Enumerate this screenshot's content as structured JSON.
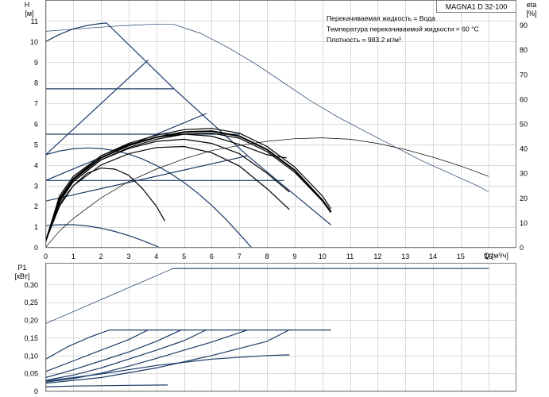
{
  "model_label": "MAGNA1 D 32-100",
  "info_lines": [
    "Перекачиваемая жидкость = Вода",
    "Температура перекачиваемой жидкости = 60 °C",
    "Плотность = 983.2 кг/м³"
  ],
  "chart_data": [
    {
      "type": "line",
      "name": "head-curves",
      "ylabel_lines": [
        "H",
        "[м]"
      ],
      "y2label_lines": [
        "eta",
        "[%]"
      ],
      "xlabel": "Q [м³/ч]",
      "xlim": [
        0,
        17
      ],
      "ylim": [
        0,
        12
      ],
      "y2lim": [
        0,
        100
      ],
      "x_ticks": [
        0,
        1,
        2,
        3,
        4,
        5,
        6,
        7,
        8,
        9,
        10,
        11,
        12,
        13,
        14,
        15,
        16
      ],
      "y_ticks": [
        0,
        1,
        2,
        3,
        4,
        5,
        6,
        7,
        8,
        9,
        10,
        11
      ],
      "y2_ticks": [
        0,
        10,
        20,
        30,
        40,
        50,
        60,
        70,
        80,
        90
      ],
      "grid": true,
      "series": [
        {
          "role": "max-curve",
          "color": "#1a3a66",
          "width": 1.2,
          "x": [
            0,
            0.5,
            1,
            1.5,
            2,
            2.2,
            4.6,
            7.3,
            10.3
          ],
          "y": [
            10.0,
            10.35,
            10.62,
            10.78,
            10.88,
            10.9,
            7.75,
            4.45,
            1.1
          ]
        },
        {
          "role": "constant-pressure",
          "color": "#1a3a66",
          "width": 1.2,
          "x": [
            0,
            4.6
          ],
          "y": [
            7.7,
            7.7
          ]
        },
        {
          "role": "constant-pressure",
          "color": "#1a3a66",
          "width": 1.2,
          "x": [
            0,
            7.0
          ],
          "y": [
            5.5,
            5.5
          ]
        },
        {
          "role": "constant-pressure",
          "color": "#1a3a66",
          "width": 1.2,
          "x": [
            0,
            8.6
          ],
          "y": [
            3.25,
            3.25
          ]
        },
        {
          "role": "proportional-pressure",
          "color": "#1a3a66",
          "width": 1.2,
          "x": [
            0,
            3.7
          ],
          "y": [
            4.5,
            9.1
          ]
        },
        {
          "role": "proportional-pressure",
          "color": "#1a3a66",
          "width": 1.2,
          "x": [
            0,
            5.8
          ],
          "y": [
            3.25,
            6.5
          ]
        },
        {
          "role": "proportional-pressure",
          "color": "#1a3a66",
          "width": 1.2,
          "x": [
            0,
            7.3
          ],
          "y": [
            2.25,
            4.45
          ]
        },
        {
          "role": "fixed-speed",
          "color": "#1a3a66",
          "width": 1.2,
          "x": [
            0,
            0.5,
            1,
            1.5,
            2,
            2.5,
            3,
            3.5,
            4,
            4.5,
            5,
            5.5,
            6,
            6.5,
            7,
            7.5,
            8,
            8.8
          ],
          "y": [
            4.5,
            4.68,
            4.79,
            4.83,
            4.8,
            4.7,
            4.53,
            4.29,
            3.98,
            3.6,
            3.15,
            2.63,
            2.04,
            1.38,
            0.65,
            -0.1,
            -0.9,
            -2.2
          ]
        },
        {
          "role": "fixed-speed",
          "color": "#1a3a66",
          "width": 1.2,
          "x": [
            0,
            0.5,
            1,
            1.5,
            2,
            2.5,
            3,
            3.5,
            4,
            4.4
          ],
          "y": [
            1.05,
            1.1,
            1.1,
            1.04,
            0.93,
            0.77,
            0.57,
            0.33,
            0.06,
            -0.2
          ]
        },
        {
          "role": "efficiency",
          "color": "#1a3a66",
          "width": 0.7,
          "x": [
            0,
            0.8,
            1.6,
            2.4,
            3.2,
            4,
            4.6,
            5.6,
            6.6,
            7.6,
            8.6,
            9.6,
            10.6,
            11.6,
            12.6,
            13.6,
            14.6,
            15.6,
            16.0
          ],
          "y": [
            10.5,
            10.58,
            10.66,
            10.74,
            10.8,
            10.85,
            10.85,
            10.4,
            9.7,
            8.9,
            8.0,
            7.1,
            6.3,
            5.6,
            4.9,
            4.2,
            3.6,
            3.0,
            2.7
          ]
        },
        {
          "role": "efficiency",
          "color": "#000000",
          "width": 0.7,
          "x": [
            0,
            0.5,
            1,
            2,
            3,
            4,
            5,
            6,
            7,
            8,
            9,
            10,
            11,
            12,
            13,
            14,
            15,
            16
          ],
          "y": [
            0,
            0.8,
            1.4,
            2.4,
            3.2,
            3.8,
            4.3,
            4.7,
            4.95,
            5.15,
            5.28,
            5.32,
            5.25,
            5.05,
            4.75,
            4.38,
            3.95,
            3.45
          ]
        },
        {
          "role": "efficiency",
          "color": "#000000",
          "width": 1.2,
          "x": [
            0,
            0.5,
            1,
            1.5,
            2,
            2.5,
            3,
            3.5,
            4,
            4.3
          ],
          "y": [
            0.3,
            2.0,
            3.0,
            3.6,
            3.85,
            3.8,
            3.5,
            2.85,
            2.0,
            1.3
          ]
        },
        {
          "role": "efficiency",
          "color": "#000000",
          "width": 1.2,
          "x": [
            0,
            0.5,
            1,
            2,
            3,
            4,
            5,
            6,
            7,
            8,
            8.8
          ],
          "y": [
            0.3,
            2.1,
            3.0,
            4.0,
            4.55,
            4.85,
            4.9,
            4.6,
            3.95,
            2.85,
            1.85
          ]
        },
        {
          "role": "efficiency",
          "color": "#000000",
          "width": 1.2,
          "x": [
            0,
            0.5,
            1,
            2,
            3,
            4,
            5,
            6,
            7,
            8,
            8.8
          ],
          "y": [
            0.3,
            2.3,
            3.2,
            4.25,
            4.8,
            5.15,
            5.25,
            5.05,
            4.55,
            3.6,
            2.7
          ]
        },
        {
          "role": "efficiency",
          "color": "#000000",
          "width": 1.2,
          "x": [
            0,
            0.5,
            1,
            2,
            3,
            4,
            5,
            6,
            7,
            8,
            8.7
          ],
          "y": [
            0.3,
            2.5,
            3.45,
            4.45,
            5.0,
            5.35,
            5.5,
            5.4,
            5.0,
            4.5,
            4.35
          ]
        },
        {
          "role": "efficiency",
          "color": "#000000",
          "width": 2.0,
          "x": [
            0,
            0.5,
            1,
            2,
            3,
            4,
            5,
            6,
            7,
            8,
            9,
            10,
            10.3
          ],
          "y": [
            0.3,
            2.3,
            3.3,
            4.35,
            4.95,
            5.35,
            5.6,
            5.65,
            5.4,
            4.75,
            3.75,
            2.3,
            1.75
          ]
        },
        {
          "role": "efficiency",
          "color": "#000000",
          "width": 1.2,
          "x": [
            0,
            0.5,
            1,
            2,
            3,
            4,
            5,
            6,
            7,
            8,
            9,
            10,
            10.3
          ],
          "y": [
            0.3,
            2.4,
            3.35,
            4.45,
            5.05,
            5.45,
            5.72,
            5.78,
            5.55,
            4.9,
            3.9,
            2.5,
            1.9
          ]
        },
        {
          "role": "efficiency",
          "color": "#000000",
          "width": 1.2,
          "x": [
            0,
            0.5,
            1,
            2,
            3,
            4,
            5,
            6,
            7,
            8,
            9,
            10,
            10.3
          ],
          "y": [
            0.3,
            2.2,
            3.2,
            4.25,
            4.85,
            5.25,
            5.5,
            5.55,
            5.3,
            4.65,
            3.65,
            2.25,
            1.7
          ]
        }
      ]
    },
    {
      "type": "line",
      "name": "power-curves",
      "ylabel_lines": [
        "P1",
        "[кВт]"
      ],
      "xlim": [
        0,
        17
      ],
      "ylim": [
        0,
        0.36
      ],
      "y_ticks": [
        0,
        0.05,
        0.1,
        0.15,
        0.2,
        0.25,
        0.3
      ],
      "y_tick_labels": [
        "0",
        "0,05",
        "0,10",
        "0,15",
        "0,20",
        "0,25",
        "0,30"
      ],
      "grid": true,
      "series": [
        {
          "role": "efficiency",
          "color": "#1a3a66",
          "width": 0.7,
          "x": [
            0,
            4.6
          ],
          "y": [
            0.19,
            0.345
          ]
        },
        {
          "role": "max-curve",
          "color": "#1a3a66",
          "width": 1.2,
          "x": [
            4.6,
            16.0
          ],
          "y": [
            0.345,
            0.345
          ]
        },
        {
          "role": "constant-pressure",
          "color": "#1a3a66",
          "width": 1.2,
          "x": [
            2.3,
            10.3
          ],
          "y": [
            0.172,
            0.172
          ]
        },
        {
          "role": "fixed-speed",
          "color": "#1a3a66",
          "width": 1.2,
          "x": [
            0,
            0.8,
            1.6,
            2.3
          ],
          "y": [
            0.09,
            0.125,
            0.152,
            0.172
          ]
        },
        {
          "role": "fixed-speed",
          "color": "#1a3a66",
          "width": 1.2,
          "x": [
            0,
            1,
            2,
            3,
            3.7
          ],
          "y": [
            0.055,
            0.085,
            0.115,
            0.145,
            0.172
          ]
        },
        {
          "role": "fixed-speed",
          "color": "#1a3a66",
          "width": 1.2,
          "x": [
            0,
            1,
            2,
            3,
            4,
            4.9
          ],
          "y": [
            0.038,
            0.06,
            0.085,
            0.11,
            0.14,
            0.172
          ]
        },
        {
          "role": "fixed-speed",
          "color": "#1a3a66",
          "width": 1.2,
          "x": [
            0,
            1,
            2,
            3,
            4,
            5,
            5.8
          ],
          "y": [
            0.03,
            0.045,
            0.065,
            0.09,
            0.115,
            0.142,
            0.172
          ]
        },
        {
          "role": "fixed-speed",
          "color": "#1a3a66",
          "width": 1.2,
          "x": [
            0,
            1,
            2,
            3,
            4,
            5,
            6,
            7.3
          ],
          "y": [
            0.025,
            0.035,
            0.05,
            0.07,
            0.092,
            0.115,
            0.138,
            0.172
          ]
        },
        {
          "role": "fixed-speed",
          "color": "#1a3a66",
          "width": 1.2,
          "x": [
            0,
            2,
            4,
            6,
            8,
            8.8
          ],
          "y": [
            0.022,
            0.038,
            0.065,
            0.1,
            0.14,
            0.172
          ]
        },
        {
          "role": "fixed-speed",
          "color": "#1a3a66",
          "width": 1.2,
          "x": [
            0,
            2,
            4,
            6,
            8,
            8.8
          ],
          "y": [
            0.028,
            0.048,
            0.072,
            0.09,
            0.1,
            0.102
          ]
        },
        {
          "role": "fixed-speed",
          "color": "#1a3a66",
          "width": 1.2,
          "x": [
            0,
            1,
            2,
            3,
            4.4
          ],
          "y": [
            0.012,
            0.014,
            0.015,
            0.016,
            0.017
          ]
        }
      ]
    }
  ]
}
